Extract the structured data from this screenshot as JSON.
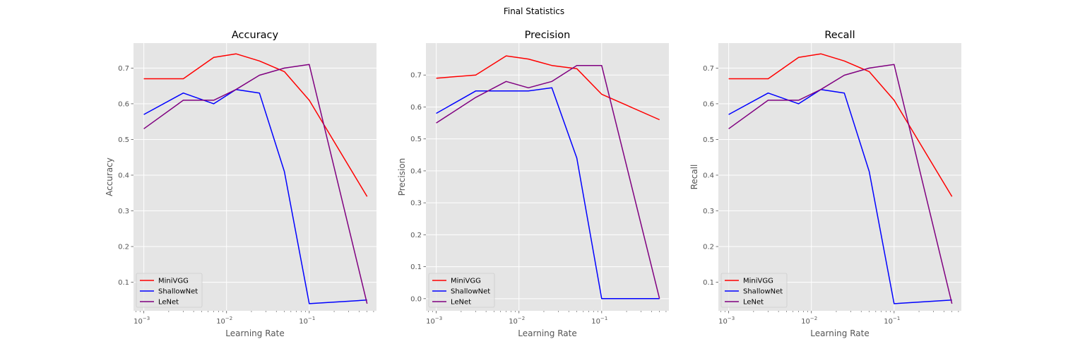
{
  "figure": {
    "suptitle": "Final Statistics"
  },
  "legend": {
    "placement": "lower-left"
  },
  "colors": {
    "MiniVGG": "#ff0000",
    "ShallowNet": "#0000ff",
    "LeNet": "#800080",
    "background": "#e5e5e5",
    "grid": "#ffffff"
  },
  "chart_data": [
    {
      "type": "line",
      "title": "Accuracy",
      "xlabel": "Learning Rate",
      "ylabel": "Accuracy",
      "xscale": "log",
      "xlim": [
        0.00075,
        0.65
      ],
      "ylim": [
        0.02,
        0.77
      ],
      "xticks": [
        {
          "value": 0.001,
          "base": "10",
          "exp": "−3"
        },
        {
          "value": 0.01,
          "base": "10",
          "exp": "−2"
        },
        {
          "value": 0.1,
          "base": "10",
          "exp": "−1"
        }
      ],
      "yticks": [
        {
          "value": 0.1,
          "label": "0.1"
        },
        {
          "value": 0.2,
          "label": "0.2"
        },
        {
          "value": 0.3,
          "label": "0.3"
        },
        {
          "value": 0.4,
          "label": "0.4"
        },
        {
          "value": 0.5,
          "label": "0.5"
        },
        {
          "value": 0.6,
          "label": "0.6"
        },
        {
          "value": 0.7,
          "label": "0.7"
        }
      ],
      "grid": true,
      "series": [
        {
          "name": "MiniVGG",
          "color": "#ff0000",
          "x": [
            0.001,
            0.003,
            0.007,
            0.013,
            0.025,
            0.05,
            0.1,
            0.5
          ],
          "y": [
            0.67,
            0.67,
            0.73,
            0.74,
            0.72,
            0.69,
            0.61,
            0.34
          ]
        },
        {
          "name": "ShallowNet",
          "color": "#0000ff",
          "x": [
            0.001,
            0.003,
            0.007,
            0.013,
            0.025,
            0.05,
            0.1,
            0.5
          ],
          "y": [
            0.57,
            0.63,
            0.6,
            0.64,
            0.63,
            0.41,
            0.04,
            0.05
          ]
        },
        {
          "name": "LeNet",
          "color": "#800080",
          "x": [
            0.001,
            0.003,
            0.007,
            0.013,
            0.025,
            0.05,
            0.1,
            0.5
          ],
          "y": [
            0.53,
            0.61,
            0.61,
            0.64,
            0.68,
            0.7,
            0.71,
            0.04
          ]
        }
      ]
    },
    {
      "type": "line",
      "title": "Precision",
      "xlabel": "Learning Rate",
      "ylabel": "Precision",
      "xscale": "log",
      "xlim": [
        0.00075,
        0.65
      ],
      "ylim": [
        -0.038,
        0.8
      ],
      "xticks": [
        {
          "value": 0.001,
          "base": "10",
          "exp": "−3"
        },
        {
          "value": 0.01,
          "base": "10",
          "exp": "−2"
        },
        {
          "value": 0.1,
          "base": "10",
          "exp": "−1"
        }
      ],
      "yticks": [
        {
          "value": 0.0,
          "label": "0.0"
        },
        {
          "value": 0.1,
          "label": "0.1"
        },
        {
          "value": 0.2,
          "label": "0.2"
        },
        {
          "value": 0.3,
          "label": "0.3"
        },
        {
          "value": 0.4,
          "label": "0.4"
        },
        {
          "value": 0.5,
          "label": "0.5"
        },
        {
          "value": 0.6,
          "label": "0.6"
        },
        {
          "value": 0.7,
          "label": "0.7"
        }
      ],
      "grid": true,
      "series": [
        {
          "name": "MiniVGG",
          "color": "#ff0000",
          "x": [
            0.001,
            0.003,
            0.007,
            0.013,
            0.025,
            0.05,
            0.1,
            0.5
          ],
          "y": [
            0.69,
            0.7,
            0.76,
            0.75,
            0.73,
            0.72,
            0.64,
            0.56
          ]
        },
        {
          "name": "ShallowNet",
          "color": "#0000ff",
          "x": [
            0.001,
            0.003,
            0.007,
            0.013,
            0.025,
            0.05,
            0.1,
            0.5
          ],
          "y": [
            0.58,
            0.65,
            0.65,
            0.65,
            0.66,
            0.44,
            0.0,
            0.0
          ]
        },
        {
          "name": "LeNet",
          "color": "#800080",
          "x": [
            0.001,
            0.003,
            0.007,
            0.013,
            0.025,
            0.05,
            0.1,
            0.5
          ],
          "y": [
            0.55,
            0.63,
            0.68,
            0.66,
            0.68,
            0.73,
            0.73,
            0.0
          ]
        }
      ]
    },
    {
      "type": "line",
      "title": "Recall",
      "xlabel": "Learning Rate",
      "ylabel": "Recall",
      "xscale": "log",
      "xlim": [
        0.00075,
        0.65
      ],
      "ylim": [
        0.02,
        0.77
      ],
      "xticks": [
        {
          "value": 0.001,
          "base": "10",
          "exp": "−3"
        },
        {
          "value": 0.01,
          "base": "10",
          "exp": "−2"
        },
        {
          "value": 0.1,
          "base": "10",
          "exp": "−1"
        }
      ],
      "yticks": [
        {
          "value": 0.1,
          "label": "0.1"
        },
        {
          "value": 0.2,
          "label": "0.2"
        },
        {
          "value": 0.3,
          "label": "0.3"
        },
        {
          "value": 0.4,
          "label": "0.4"
        },
        {
          "value": 0.5,
          "label": "0.5"
        },
        {
          "value": 0.6,
          "label": "0.6"
        },
        {
          "value": 0.7,
          "label": "0.7"
        }
      ],
      "grid": true,
      "series": [
        {
          "name": "MiniVGG",
          "color": "#ff0000",
          "x": [
            0.001,
            0.003,
            0.007,
            0.013,
            0.025,
            0.05,
            0.1,
            0.5
          ],
          "y": [
            0.67,
            0.67,
            0.73,
            0.74,
            0.72,
            0.69,
            0.61,
            0.34
          ]
        },
        {
          "name": "ShallowNet",
          "color": "#0000ff",
          "x": [
            0.001,
            0.003,
            0.007,
            0.013,
            0.025,
            0.05,
            0.1,
            0.5
          ],
          "y": [
            0.57,
            0.63,
            0.6,
            0.64,
            0.63,
            0.41,
            0.04,
            0.05
          ]
        },
        {
          "name": "LeNet",
          "color": "#800080",
          "x": [
            0.001,
            0.003,
            0.007,
            0.013,
            0.025,
            0.05,
            0.1,
            0.5
          ],
          "y": [
            0.53,
            0.61,
            0.61,
            0.64,
            0.68,
            0.7,
            0.71,
            0.04
          ]
        }
      ]
    }
  ]
}
